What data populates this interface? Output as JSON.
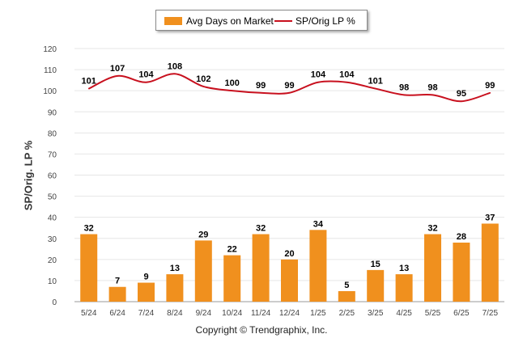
{
  "legend": {
    "bar_label": "Avg Days on Market",
    "line_label": "SP/Orig LP %"
  },
  "footer": {
    "copyright": "Copyright © Trendgraphix, Inc."
  },
  "colors": {
    "bar": "#f0901e",
    "line": "#c8101e",
    "grid": "#e6e6e6",
    "axis": "#9a9a9a"
  },
  "chart_data": {
    "type": "bar",
    "categories": [
      "5/24",
      "6/24",
      "7/24",
      "8/24",
      "9/24",
      "10/24",
      "11/24",
      "12/24",
      "1/25",
      "2/25",
      "3/25",
      "4/25",
      "5/25",
      "6/25",
      "7/25"
    ],
    "series": [
      {
        "name": "Avg Days on Market",
        "type": "bar",
        "values": [
          32,
          7,
          9,
          13,
          29,
          22,
          32,
          20,
          34,
          5,
          15,
          13,
          32,
          28,
          37
        ]
      },
      {
        "name": "SP/Orig LP %",
        "type": "line",
        "values": [
          101,
          107,
          104,
          108,
          102,
          100,
          99,
          99,
          104,
          104,
          101,
          98,
          98,
          95,
          99
        ]
      }
    ],
    "ylabel": "SP/Orig. LP %",
    "xlabel": "",
    "ylim": [
      0,
      120
    ],
    "yticks": [
      0,
      10,
      20,
      30,
      40,
      50,
      60,
      70,
      80,
      90,
      100,
      110,
      120
    ],
    "grid": true,
    "legend_position": "top"
  }
}
